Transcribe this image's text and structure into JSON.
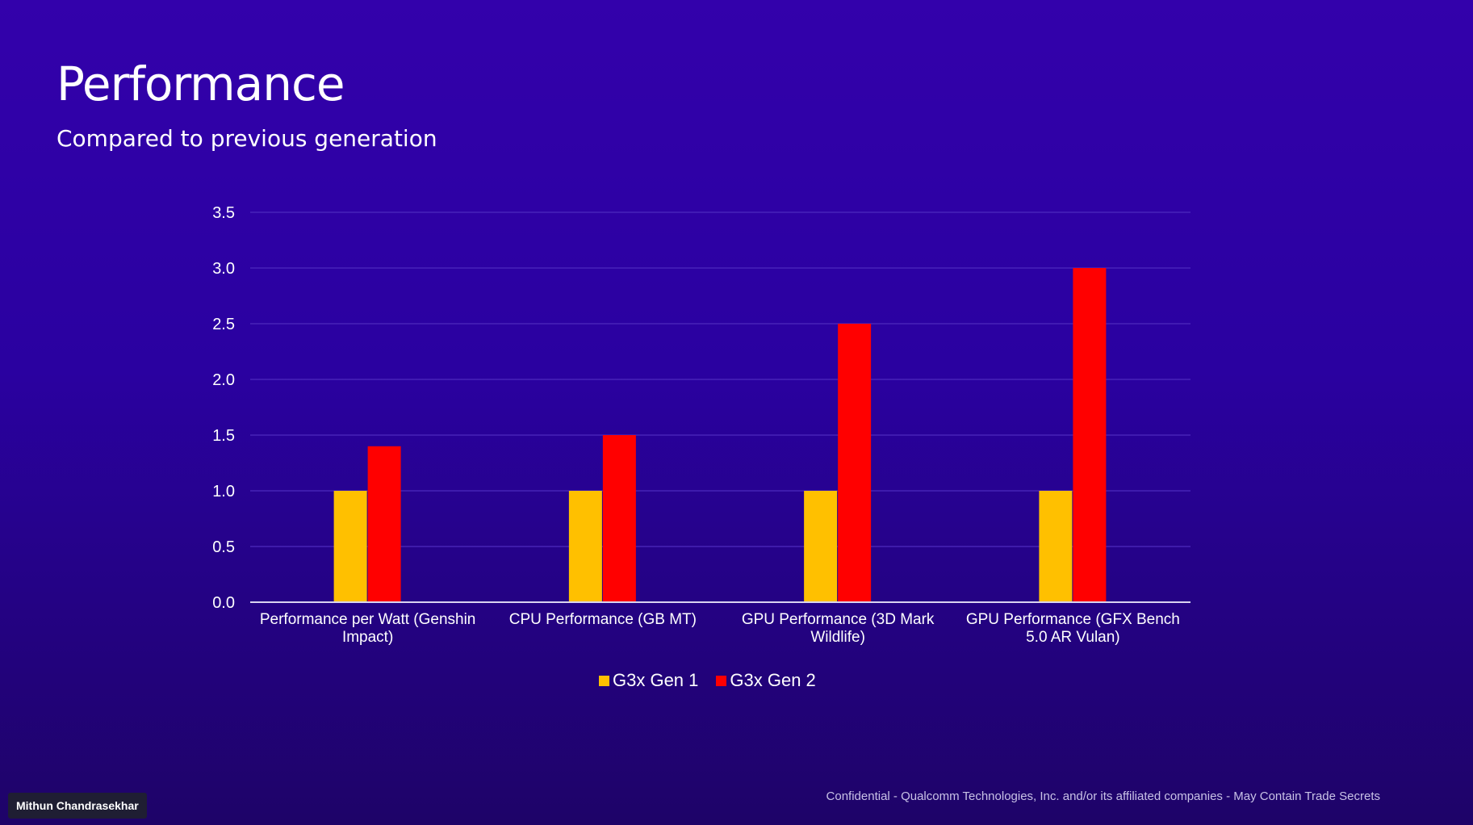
{
  "slide": {
    "title": "Performance",
    "subtitle": "Compared to previous generation"
  },
  "chart_data": {
    "type": "bar",
    "title": "",
    "xlabel": "",
    "ylabel": "",
    "ylim": [
      0,
      3.5
    ],
    "yticks": [
      "0.0",
      "0.5",
      "1.0",
      "1.5",
      "2.0",
      "2.5",
      "3.0",
      "3.5"
    ],
    "grid": true,
    "legend_position": "bottom",
    "categories": [
      "Performance per Watt (Genshin Impact)",
      "CPU Performance (GB MT)",
      "GPU Performance (3D Mark Wildlife)",
      "GPU Performance (GFX Bench 5.0 AR Vulan)"
    ],
    "series": [
      {
        "name": "G3x Gen 1",
        "color": "#ffc000",
        "values": [
          1.0,
          1.0,
          1.0,
          1.0
        ]
      },
      {
        "name": "G3x Gen 2",
        "color": "#ff0000",
        "values": [
          1.4,
          1.5,
          2.5,
          3.0
        ]
      }
    ]
  },
  "footer": {
    "confidential": "Confidential - Qualcomm Technologies, Inc. and/or its affiliated companies - May Contain Trade Secrets"
  },
  "presenter": {
    "name": "Mithun Chandrasekhar"
  }
}
